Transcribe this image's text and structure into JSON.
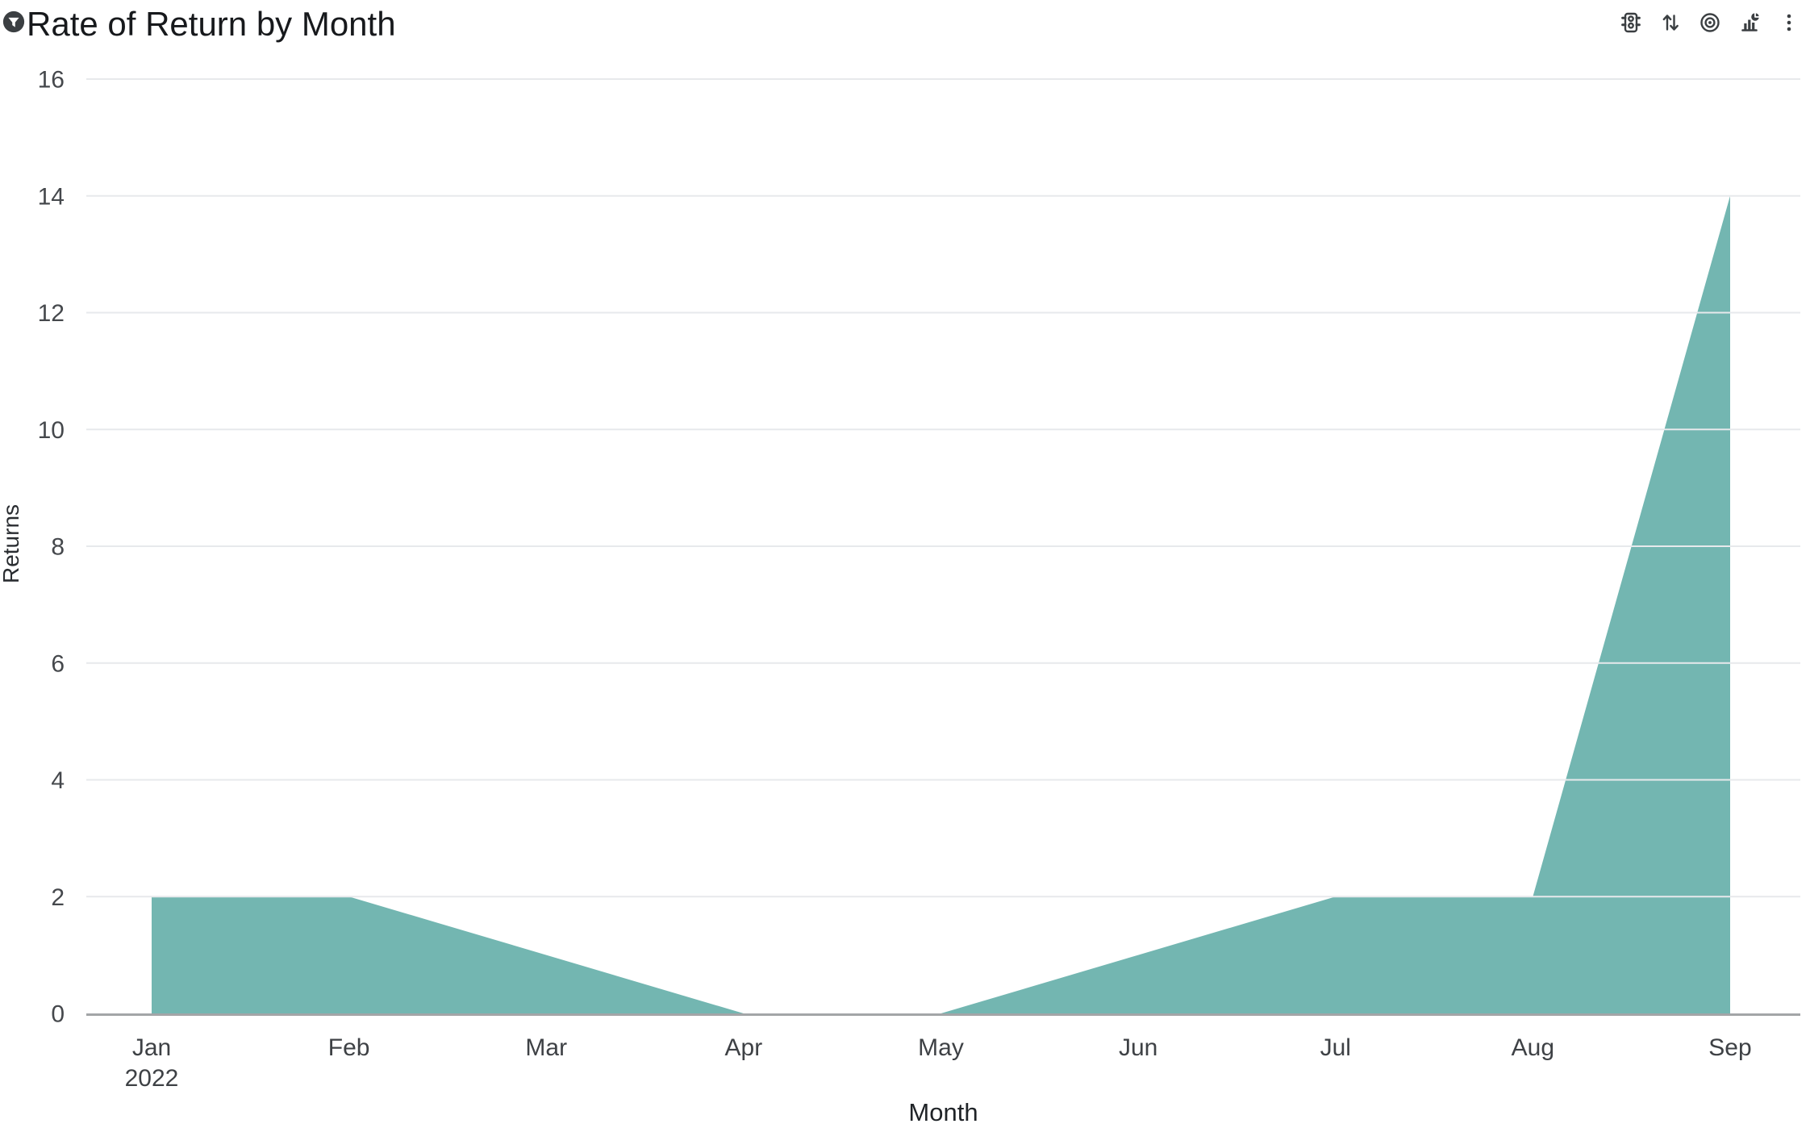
{
  "header": {
    "title": "Rate of Return by Month",
    "filter_icon": "filter-funnel",
    "toolbar_icons": [
      "traffic-light-status",
      "sort",
      "target",
      "chart-type",
      "more-options"
    ]
  },
  "chart_data": {
    "type": "area",
    "title": "Rate of Return by Month",
    "categories": [
      "Jan",
      "Feb",
      "Mar",
      "Apr",
      "May",
      "Jun",
      "Jul",
      "Aug",
      "Sep"
    ],
    "year_label": "2022",
    "year_label_index": 0,
    "values": [
      2,
      2,
      1,
      0,
      0,
      1,
      2,
      2,
      14
    ],
    "xlabel": "Month",
    "ylabel": "Returns",
    "ylim": [
      0,
      16
    ],
    "yticks": [
      0,
      2,
      4,
      6,
      8,
      10,
      12,
      14,
      16
    ],
    "grid": true,
    "legend": "none",
    "colors": {
      "area": "#73B6B1",
      "grid": "#E7E9EC",
      "axis": "#A3A5A7",
      "tick_text": "#45484C",
      "axis_title_text": "#202428",
      "title_text": "#17191C",
      "icon": "#3B3F42"
    }
  }
}
